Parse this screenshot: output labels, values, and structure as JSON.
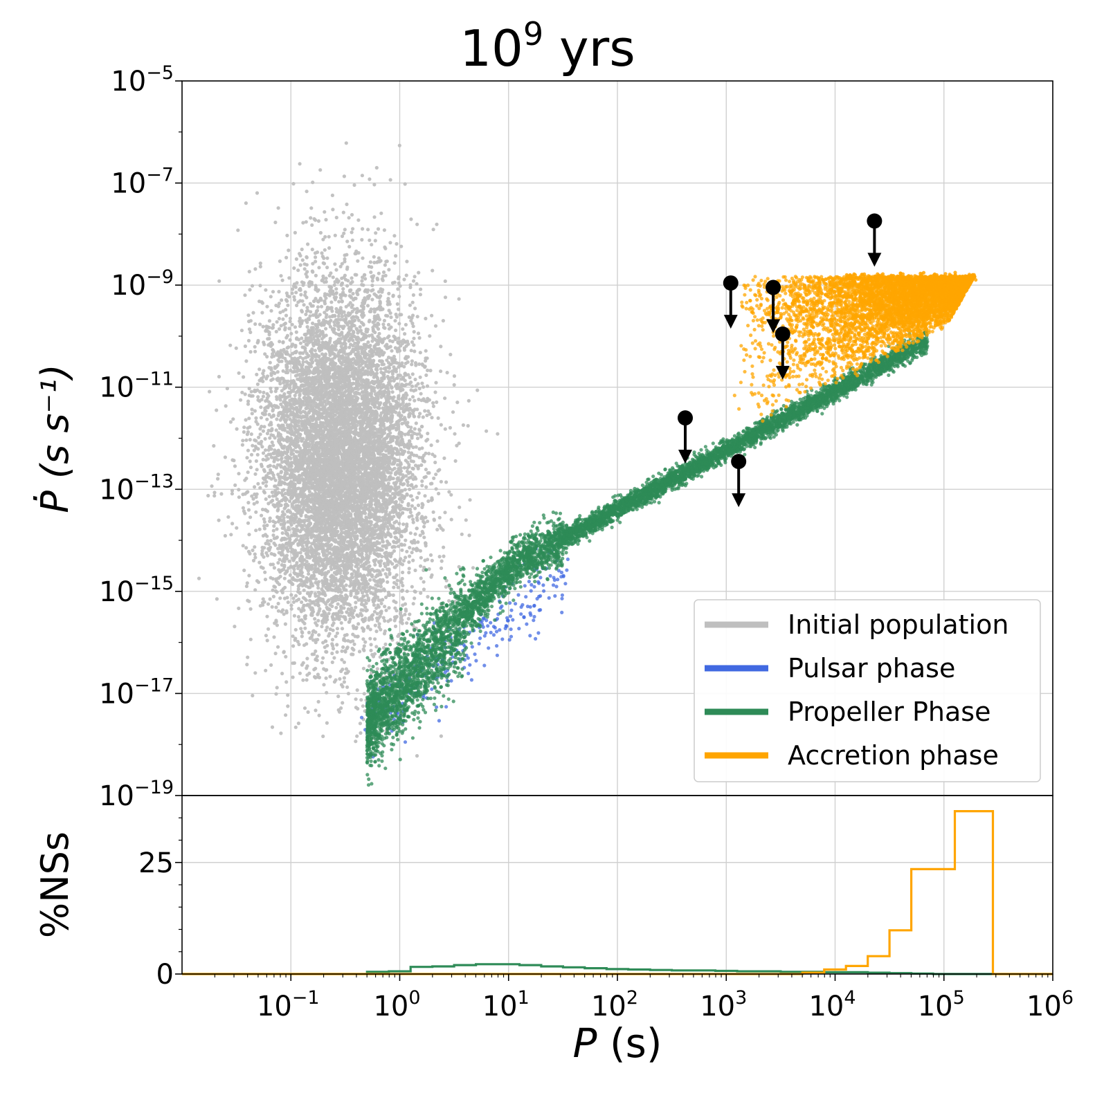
{
  "chart_data": [
    {
      "type": "scatter",
      "title": "10^9 yrs",
      "title_base": "10",
      "title_exp": "9",
      "title_unit": " yrs",
      "xlabel_symbol": "P",
      "xlabel_unit": " (s)",
      "ylabel": "Ṗ (s s⁻¹)",
      "x_scale": "log",
      "y_scale": "log",
      "xlim": [
        0.01,
        1000000
      ],
      "ylim": [
        1e-19,
        1e-05
      ],
      "grid": true,
      "legend_placement": "lower-right",
      "x_ticks": [
        {
          "base": "10",
          "exp": "−1",
          "value": 0.1
        },
        {
          "base": "10",
          "exp": "0",
          "value": 1
        },
        {
          "base": "10",
          "exp": "1",
          "value": 10
        },
        {
          "base": "10",
          "exp": "2",
          "value": 100
        },
        {
          "base": "10",
          "exp": "3",
          "value": 1000
        },
        {
          "base": "10",
          "exp": "4",
          "value": 10000
        },
        {
          "base": "10",
          "exp": "5",
          "value": 100000
        },
        {
          "base": "10",
          "exp": "6",
          "value": 1000000
        }
      ],
      "y_ticks": [
        {
          "base": "10",
          "exp": "−5",
          "value": 1e-05
        },
        {
          "base": "10",
          "exp": "−7",
          "value": 1e-07
        },
        {
          "base": "10",
          "exp": "−9",
          "value": 1e-09
        },
        {
          "base": "10",
          "exp": "−11",
          "value": 1e-11
        },
        {
          "base": "10",
          "exp": "−13",
          "value": 1e-13
        },
        {
          "base": "10",
          "exp": "−15",
          "value": 1e-15
        },
        {
          "base": "10",
          "exp": "−17",
          "value": 1e-17
        },
        {
          "base": "10",
          "exp": "−19",
          "value": 1e-19
        }
      ],
      "series": [
        {
          "name": "Initial population",
          "color": "#bfbfbf",
          "kind": "cloud",
          "center_log_p": -0.55,
          "center_log_pdot": -12.4,
          "log_p_range": [
            -1.8,
            0.8
          ],
          "log_pdot_range": [
            -18.0,
            -6.3
          ]
        },
        {
          "name": "Pulsar phase",
          "color": "#4169e1",
          "kind": "band",
          "log_p_range": [
            -0.3,
            1.6
          ],
          "log_pdot_range": [
            -18.8,
            -15.1
          ]
        },
        {
          "name": "Propeller Phase",
          "color": "#2e8b57",
          "kind": "band",
          "log_p_range": [
            -0.3,
            4.8
          ],
          "log_pdot_range": [
            -19.0,
            -10.5
          ]
        },
        {
          "name": "Accretion phase",
          "color": "#ffa500",
          "kind": "region",
          "log_p_range": [
            2.9,
            5.3
          ],
          "log_pdot_range": [
            -12.5,
            -8.8
          ]
        }
      ],
      "upper_limits": [
        {
          "p": 23000,
          "pdot": 1.8e-08
        },
        {
          "p": 1100,
          "pdot": 1.1e-09
        },
        {
          "p": 2700,
          "pdot": 9e-10
        },
        {
          "p": 3300,
          "pdot": 1.1e-10
        },
        {
          "p": 420,
          "pdot": 2.5e-12
        },
        {
          "p": 1300,
          "pdot": 3.5e-13
        }
      ]
    },
    {
      "type": "histogram",
      "ylabel": "%NSs",
      "x_scale": "log",
      "xlim": [
        0.01,
        1000000
      ],
      "ylim": [
        0,
        40
      ],
      "y_ticks": [
        0,
        25
      ],
      "y_tick_labels": [
        "0",
        "25"
      ],
      "grid": true,
      "series": [
        {
          "name": "Propeller Phase",
          "color": "#2e8b57",
          "bin_edges_log": [
            -0.3,
            -0.1,
            0.1,
            0.3,
            0.5,
            0.7,
            0.9,
            1.1,
            1.3,
            1.5,
            1.7,
            1.9,
            2.1,
            2.3,
            2.5,
            2.7,
            2.9,
            3.1,
            3.3,
            3.5,
            3.7,
            3.9,
            4.1,
            4.3,
            4.5,
            4.7,
            4.9
          ],
          "values": [
            0.5,
            0.6,
            1.6,
            1.7,
            2.0,
            2.2,
            2.2,
            2.0,
            1.7,
            1.5,
            1.3,
            1.1,
            1.0,
            0.9,
            0.8,
            0.8,
            0.7,
            0.6,
            0.6,
            0.5,
            0.5,
            0.4,
            0.4,
            0.3,
            0.2,
            0.1
          ]
        },
        {
          "name": "Accretion phase",
          "color": "#ffa500",
          "bin_edges_log": [
            3.7,
            3.9,
            4.1,
            4.3,
            4.5,
            4.7,
            4.9,
            5.1,
            5.3,
            5.45
          ],
          "values": [
            0.3,
            1.0,
            1.8,
            4.0,
            9.8,
            23.5,
            23.5,
            36.5,
            36.5
          ]
        }
      ]
    }
  ]
}
